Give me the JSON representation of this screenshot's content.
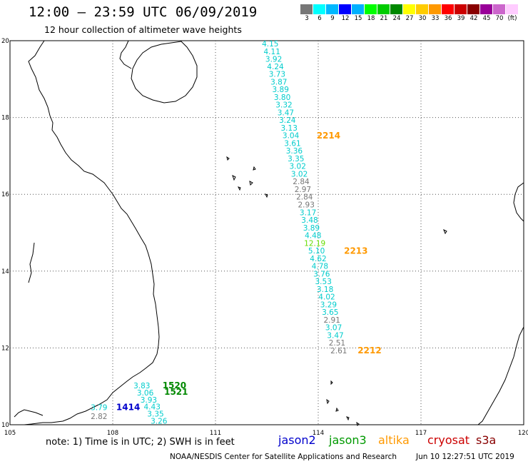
{
  "header": {
    "title": "12:00 – 23:59 UTC 06/09/2019",
    "subtitle": "12 hour collection of altimeter wave heights"
  },
  "legend": {
    "colors": [
      "#777777",
      "#00ffff",
      "#00b8ff",
      "#0000ff",
      "#00b0ff",
      "#00ff00",
      "#00cc00",
      "#008800",
      "#ffff00",
      "#ffcc00",
      "#ff9900",
      "#ff0000",
      "#cc0000",
      "#880000",
      "#990099",
      "#cc66cc",
      "#ffccff"
    ],
    "labels": [
      "3",
      "6",
      "9",
      "12",
      "15",
      "18",
      "21",
      "24",
      "27",
      "30",
      "33",
      "36",
      "39",
      "42",
      "45",
      "70",
      "(ft)"
    ]
  },
  "axes": {
    "x_ticks": [
      "105",
      "108",
      "111",
      "114",
      "117",
      "120"
    ],
    "x_values": [
      105,
      108,
      111,
      114,
      117,
      120
    ],
    "y_ticks": [
      "20",
      "18",
      "16",
      "14",
      "12",
      "10"
    ],
    "y_values": [
      20,
      18,
      16,
      14,
      12,
      10
    ],
    "lon_range": [
      105,
      120
    ],
    "lat_range": [
      10,
      20
    ]
  },
  "chart_data": {
    "type": "scatter",
    "series": [
      {
        "name": "jason2",
        "color": "#0000cc",
        "points": [
          {
            "lat": 10.38,
            "lon": 107.6,
            "value": "3.79",
            "color": "#00cccc"
          },
          {
            "lat": 10.15,
            "lon": 107.6,
            "value": "2.82",
            "color": "#777777"
          }
        ],
        "pass_labels": [
          {
            "lat": 10.38,
            "lon": 108.45,
            "text": "1414",
            "color": "#0000cc"
          }
        ]
      },
      {
        "name": "jason3",
        "color": "#008800",
        "points": [
          {
            "lat": 10.95,
            "lon": 108.85,
            "value": "3.83",
            "color": "#00cccc"
          },
          {
            "lat": 10.76,
            "lon": 108.95,
            "value": "3.06",
            "color": "#00cccc"
          },
          {
            "lat": 10.58,
            "lon": 109.05,
            "value": "3.93",
            "color": "#00cccc"
          },
          {
            "lat": 10.4,
            "lon": 109.15,
            "value": "4.43",
            "color": "#00cccc"
          },
          {
            "lat": 10.21,
            "lon": 109.25,
            "value": "3.35",
            "color": "#00cccc"
          },
          {
            "lat": 10.03,
            "lon": 109.35,
            "value": "3.26",
            "color": "#00cccc"
          }
        ],
        "pass_labels": [
          {
            "lat": 10.95,
            "lon": 109.8,
            "text": "1520",
            "color": "#008800"
          },
          {
            "lat": 10.78,
            "lon": 109.85,
            "text": "1521",
            "color": "#008800"
          }
        ]
      },
      {
        "name": "altika",
        "color": "#ff9900",
        "points": [
          {
            "lat": 19.85,
            "lon": 112.6,
            "value": "4.15",
            "color": "#00cccc"
          },
          {
            "lat": 19.65,
            "lon": 112.65,
            "value": "4.11",
            "color": "#00cccc"
          },
          {
            "lat": 19.45,
            "lon": 112.7,
            "value": "3.92",
            "color": "#00cccc"
          },
          {
            "lat": 19.26,
            "lon": 112.75,
            "value": "4.24",
            "color": "#00cccc"
          },
          {
            "lat": 19.06,
            "lon": 112.8,
            "value": "3.73",
            "color": "#00cccc"
          },
          {
            "lat": 18.86,
            "lon": 112.85,
            "value": "3.87",
            "color": "#00cccc"
          },
          {
            "lat": 18.66,
            "lon": 112.9,
            "value": "3.89",
            "color": "#00cccc"
          },
          {
            "lat": 18.46,
            "lon": 112.95,
            "value": "3.80",
            "color": "#00cccc"
          },
          {
            "lat": 18.26,
            "lon": 113.0,
            "value": "3.32",
            "color": "#00cccc"
          },
          {
            "lat": 18.06,
            "lon": 113.05,
            "value": "3.47",
            "color": "#00cccc"
          },
          {
            "lat": 17.86,
            "lon": 113.1,
            "value": "3.24",
            "color": "#00cccc"
          },
          {
            "lat": 17.66,
            "lon": 113.15,
            "value": "3.13",
            "color": "#00cccc"
          },
          {
            "lat": 17.46,
            "lon": 113.2,
            "value": "3.04",
            "color": "#00cccc"
          },
          {
            "lat": 17.26,
            "lon": 113.25,
            "value": "3.61",
            "color": "#00cccc"
          },
          {
            "lat": 17.06,
            "lon": 113.3,
            "value": "3.36",
            "color": "#00cccc"
          },
          {
            "lat": 16.86,
            "lon": 113.35,
            "value": "3.35",
            "color": "#00cccc"
          },
          {
            "lat": 16.66,
            "lon": 113.4,
            "value": "3.02",
            "color": "#00cccc"
          },
          {
            "lat": 16.46,
            "lon": 113.45,
            "value": "3.02",
            "color": "#00cccc"
          },
          {
            "lat": 16.26,
            "lon": 113.5,
            "value": "2.84",
            "color": "#777777"
          },
          {
            "lat": 16.06,
            "lon": 113.55,
            "value": "2.97",
            "color": "#777777"
          },
          {
            "lat": 15.86,
            "lon": 113.6,
            "value": "2.84",
            "color": "#777777"
          },
          {
            "lat": 15.66,
            "lon": 113.65,
            "value": "2.93",
            "color": "#777777"
          },
          {
            "lat": 15.46,
            "lon": 113.7,
            "value": "3.17",
            "color": "#00cccc"
          },
          {
            "lat": 15.26,
            "lon": 113.75,
            "value": "3.48",
            "color": "#00cccc"
          },
          {
            "lat": 15.06,
            "lon": 113.8,
            "value": "3.89",
            "color": "#00cccc"
          },
          {
            "lat": 14.86,
            "lon": 113.85,
            "value": "4.48",
            "color": "#00cccc"
          },
          {
            "lat": 14.66,
            "lon": 113.9,
            "value": "12.19",
            "color": "#66dd00"
          },
          {
            "lat": 14.46,
            "lon": 113.95,
            "value": "5.10",
            "color": "#00cccc"
          },
          {
            "lat": 14.26,
            "lon": 114.0,
            "value": "4.62",
            "color": "#00cccc"
          },
          {
            "lat": 14.06,
            "lon": 114.05,
            "value": "4.78",
            "color": "#00cccc"
          },
          {
            "lat": 13.86,
            "lon": 114.1,
            "value": "3.76",
            "color": "#00cccc"
          },
          {
            "lat": 13.66,
            "lon": 114.15,
            "value": "3.53",
            "color": "#00cccc"
          },
          {
            "lat": 13.46,
            "lon": 114.2,
            "value": "3.18",
            "color": "#00cccc"
          },
          {
            "lat": 13.26,
            "lon": 114.25,
            "value": "4.02",
            "color": "#00cccc"
          },
          {
            "lat": 13.06,
            "lon": 114.3,
            "value": "3.29",
            "color": "#00cccc"
          },
          {
            "lat": 12.86,
            "lon": 114.35,
            "value": "3.65",
            "color": "#00cccc"
          },
          {
            "lat": 12.66,
            "lon": 114.4,
            "value": "2.91",
            "color": "#777777"
          },
          {
            "lat": 12.46,
            "lon": 114.45,
            "value": "3.07",
            "color": "#00cccc"
          },
          {
            "lat": 12.26,
            "lon": 114.5,
            "value": "3.47",
            "color": "#00cccc"
          },
          {
            "lat": 12.06,
            "lon": 114.55,
            "value": "2.51",
            "color": "#777777"
          },
          {
            "lat": 11.86,
            "lon": 114.6,
            "value": "2.61",
            "color": "#777777"
          }
        ],
        "pass_labels": [
          {
            "lat": 17.45,
            "lon": 114.3,
            "text": "2214",
            "color": "#ff9900"
          },
          {
            "lat": 14.45,
            "lon": 115.1,
            "text": "2213",
            "color": "#ff9900"
          },
          {
            "lat": 11.86,
            "lon": 115.5,
            "text": "2212",
            "color": "#ff9900"
          }
        ]
      },
      {
        "name": "cryosat",
        "color": "#cc0000",
        "points": [],
        "pass_labels": []
      },
      {
        "name": "s3a",
        "color": "#880000",
        "points": [],
        "pass_labels": []
      }
    ]
  },
  "footer": {
    "note": "note:  1) Time is in UTC;  2) SWH is in feet",
    "satellites": [
      {
        "name": "jason2",
        "color": "#0000cc"
      },
      {
        "name": "jason3",
        "color": "#009900"
      },
      {
        "name": "altika",
        "color": "#ff9900"
      },
      {
        "name": "cryosat",
        "color": "#cc0000"
      },
      {
        "name": "s3a",
        "color": "#880000"
      }
    ],
    "credit": "NOAA/NESDIS Center for Satellite Applications and Research",
    "timestamp": "Jun 10 12:27:51 UTC 2019"
  }
}
